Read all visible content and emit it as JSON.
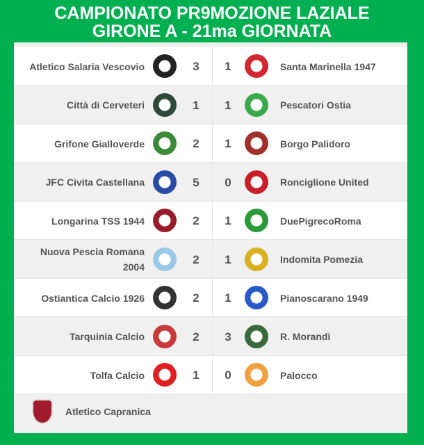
{
  "title": {
    "line1": "CAMPIONATO PR9MOZIONE LAZIALE",
    "line2": "GIRONE A - 21ma GIORNATA"
  },
  "matches": [
    {
      "home": "Atletico Salaria Vescovio",
      "home_score": "3",
      "away_score": "1",
      "away": "Santa Marinella 1947",
      "home_color": "#222222",
      "away_color": "#d22630"
    },
    {
      "home": "Città di Cerveteri",
      "home_score": "1",
      "away_score": "1",
      "away": "Pescatori Ostia",
      "home_color": "#2f4a3a",
      "away_color": "#3aa94a"
    },
    {
      "home": "Grifone Gialloverde",
      "home_score": "2",
      "away_score": "1",
      "away": "Borgo Palidoro",
      "home_color": "#3a8a3a",
      "away_color": "#a0302a"
    },
    {
      "home": "JFC Civita Castellana",
      "home_score": "5",
      "away_score": "0",
      "away": "Ronciglione United",
      "home_color": "#2a4aa8",
      "away_color": "#c8202a"
    },
    {
      "home": "Longarina TSS 1944",
      "home_score": "2",
      "away_score": "1",
      "away": "DuePigrecoRoma",
      "home_color": "#9a1c2a",
      "away_color": "#2a9a3a"
    },
    {
      "home": "Nuova Pescia Romana 2004",
      "home_score": "2",
      "away_score": "1",
      "away": "Indomita Pomezia",
      "home_color": "#9ac8e8",
      "away_color": "#d8b020"
    },
    {
      "home": "Ostiantica Calcio 1926",
      "home_score": "2",
      "away_score": "1",
      "away": "Pianoscarano 1949",
      "home_color": "#333333",
      "away_color": "#2a5ac8"
    },
    {
      "home": "Tarquinia Calcio",
      "home_score": "2",
      "away_score": "3",
      "away": "R. Morandi",
      "home_color": "#c83a3a",
      "away_color": "#3a6a3a"
    },
    {
      "home": "Tolfa Calcio",
      "home_score": "1",
      "away_score": "0",
      "away": "Palocco",
      "home_color": "#e02020",
      "away_color": "#f0a040"
    }
  ],
  "bye": {
    "team": "Atletico Capranica"
  }
}
